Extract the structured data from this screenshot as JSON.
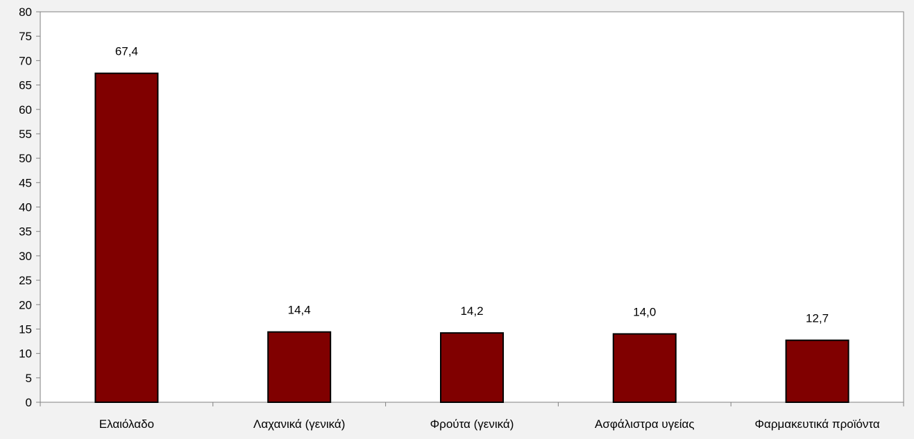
{
  "chart_data": {
    "type": "bar",
    "categories": [
      "Ελαιόλαδο",
      "Λαχανικά (γενικά)",
      "Φρούτα (γενικά)",
      "Ασφάλιστρα υγείας",
      "Φαρμακευτικά προϊόντα"
    ],
    "values": [
      67.4,
      14.4,
      14.2,
      14.0,
      12.7
    ],
    "data_labels": [
      "67,4",
      "14,4",
      "14,2",
      "14,0",
      "12,7"
    ],
    "ylim": [
      0,
      80
    ],
    "yticks": [
      0,
      5,
      10,
      15,
      20,
      25,
      30,
      35,
      40,
      45,
      50,
      55,
      60,
      65,
      70,
      75,
      80
    ],
    "ytick_labels": [
      "0",
      "5",
      "10",
      "15",
      "20",
      "25",
      "30",
      "35",
      "40",
      "45",
      "50",
      "55",
      "60",
      "65",
      "70",
      "75",
      "80"
    ],
    "grid": false,
    "legend": "none",
    "colors": {
      "bar_fill": "#800000",
      "bar_stroke": "#000000",
      "plot_background": "#ffffff",
      "page_background": "#f2f2f2",
      "axis": "#808080"
    }
  }
}
